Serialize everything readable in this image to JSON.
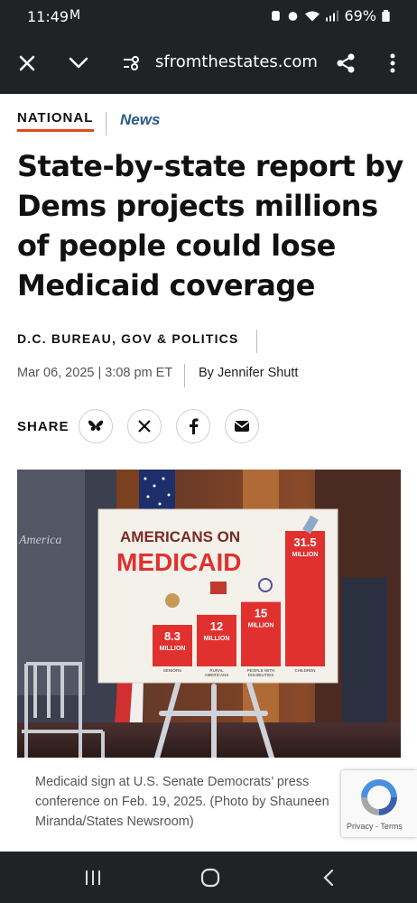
{
  "status_bar": {
    "time": "11:49",
    "battery": "69%"
  },
  "browser": {
    "url": "sfromthestates.com"
  },
  "article": {
    "section": "NATIONAL",
    "category": "News",
    "headline": "State-by-state report by Dems projects millions of people could lose Medicaid coverage",
    "bureau": "D.C. BUREAU, GOV & POLITICS",
    "date": "Mar 06, 2025 | 3:08 pm ET",
    "byline": "By Jennifer Shutt",
    "share_label": "SHARE",
    "caption": "Medicaid sign at U.S. Senate Democrats’ press conference on Feb. 19, 2025. (Photo by Shauneen Miranda/States Newsroom)"
  },
  "photo_sign": {
    "title_line1": "AMERICANS ON",
    "title_line2": "MEDICAID",
    "background_text": "America",
    "bars": [
      {
        "value": "8.3",
        "unit": "MILLION",
        "label": "SENIORS",
        "value_num": 8.3
      },
      {
        "value": "12",
        "unit": "MILLION",
        "label_line1": "RURAL",
        "label_line2": "AMERICANS",
        "value_num": 12
      },
      {
        "value": "15",
        "unit": "MILLION",
        "label_line1": "PEOPLE WITH",
        "label_line2": "DISABILITIES",
        "value_num": 15
      },
      {
        "value": "31.5",
        "unit": "MILLION",
        "label": "CHILDREN",
        "value_num": 31.5
      }
    ],
    "accent_color": "#e0312f"
  },
  "recaptcha": {
    "terms": "Privacy - Terms"
  },
  "colors": {
    "dark_bar": "#202326",
    "kicker_underline": "#e04a1e",
    "news_color": "#2a5a8c"
  }
}
